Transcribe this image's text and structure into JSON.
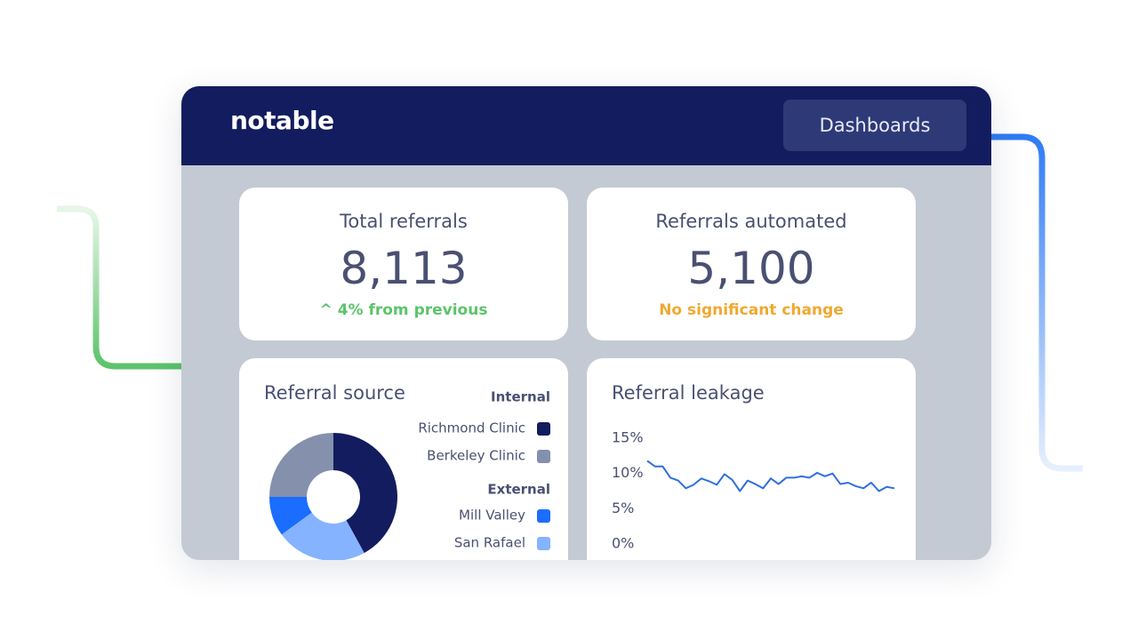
{
  "header": {
    "brand": "notable",
    "button": "Dashboards"
  },
  "stats": [
    {
      "title": "Total referrals",
      "value": "8,113",
      "note": "^ 4% from previous",
      "note_color": "#5cc46b"
    },
    {
      "title": "Referrals automated",
      "value": "5,100",
      "note": "No significant change",
      "note_color": "#f0a830"
    }
  ],
  "chart_data": [
    {
      "type": "pie",
      "title": "Referral source",
      "donut": true,
      "legend_groups": [
        "Internal",
        "External"
      ],
      "categories": [
        "Richmond Clinic",
        "San Rafael",
        "Mill Valley",
        "Berkeley Clinic"
      ],
      "values": [
        42,
        23,
        10,
        25
      ],
      "colors": [
        "#131c5e",
        "#85b3ff",
        "#1a6dff",
        "#8590ad"
      ]
    },
    {
      "type": "line",
      "title": "Referral leakage",
      "series": [
        {
          "name": "Referral leakage",
          "color": "#2f6fe0",
          "values": [
            11.8,
            11.0,
            11.0,
            9.4,
            9.0,
            7.9,
            8.4,
            9.3,
            8.9,
            8.4,
            9.9,
            9.1,
            7.5,
            9.0,
            8.5,
            7.9,
            9.3,
            8.5,
            9.4,
            9.4,
            9.6,
            9.4,
            10.1,
            9.6,
            10.0,
            8.5,
            8.7,
            8.2,
            7.9,
            8.7,
            7.5,
            8.1,
            7.9
          ]
        }
      ],
      "ylim": [
        0,
        15
      ],
      "yticks": [
        {
          "value": 0,
          "label": "0%"
        },
        {
          "value": 5,
          "label": "5%"
        },
        {
          "value": 10,
          "label": "10%"
        },
        {
          "value": 15,
          "label": "15%"
        }
      ]
    }
  ]
}
